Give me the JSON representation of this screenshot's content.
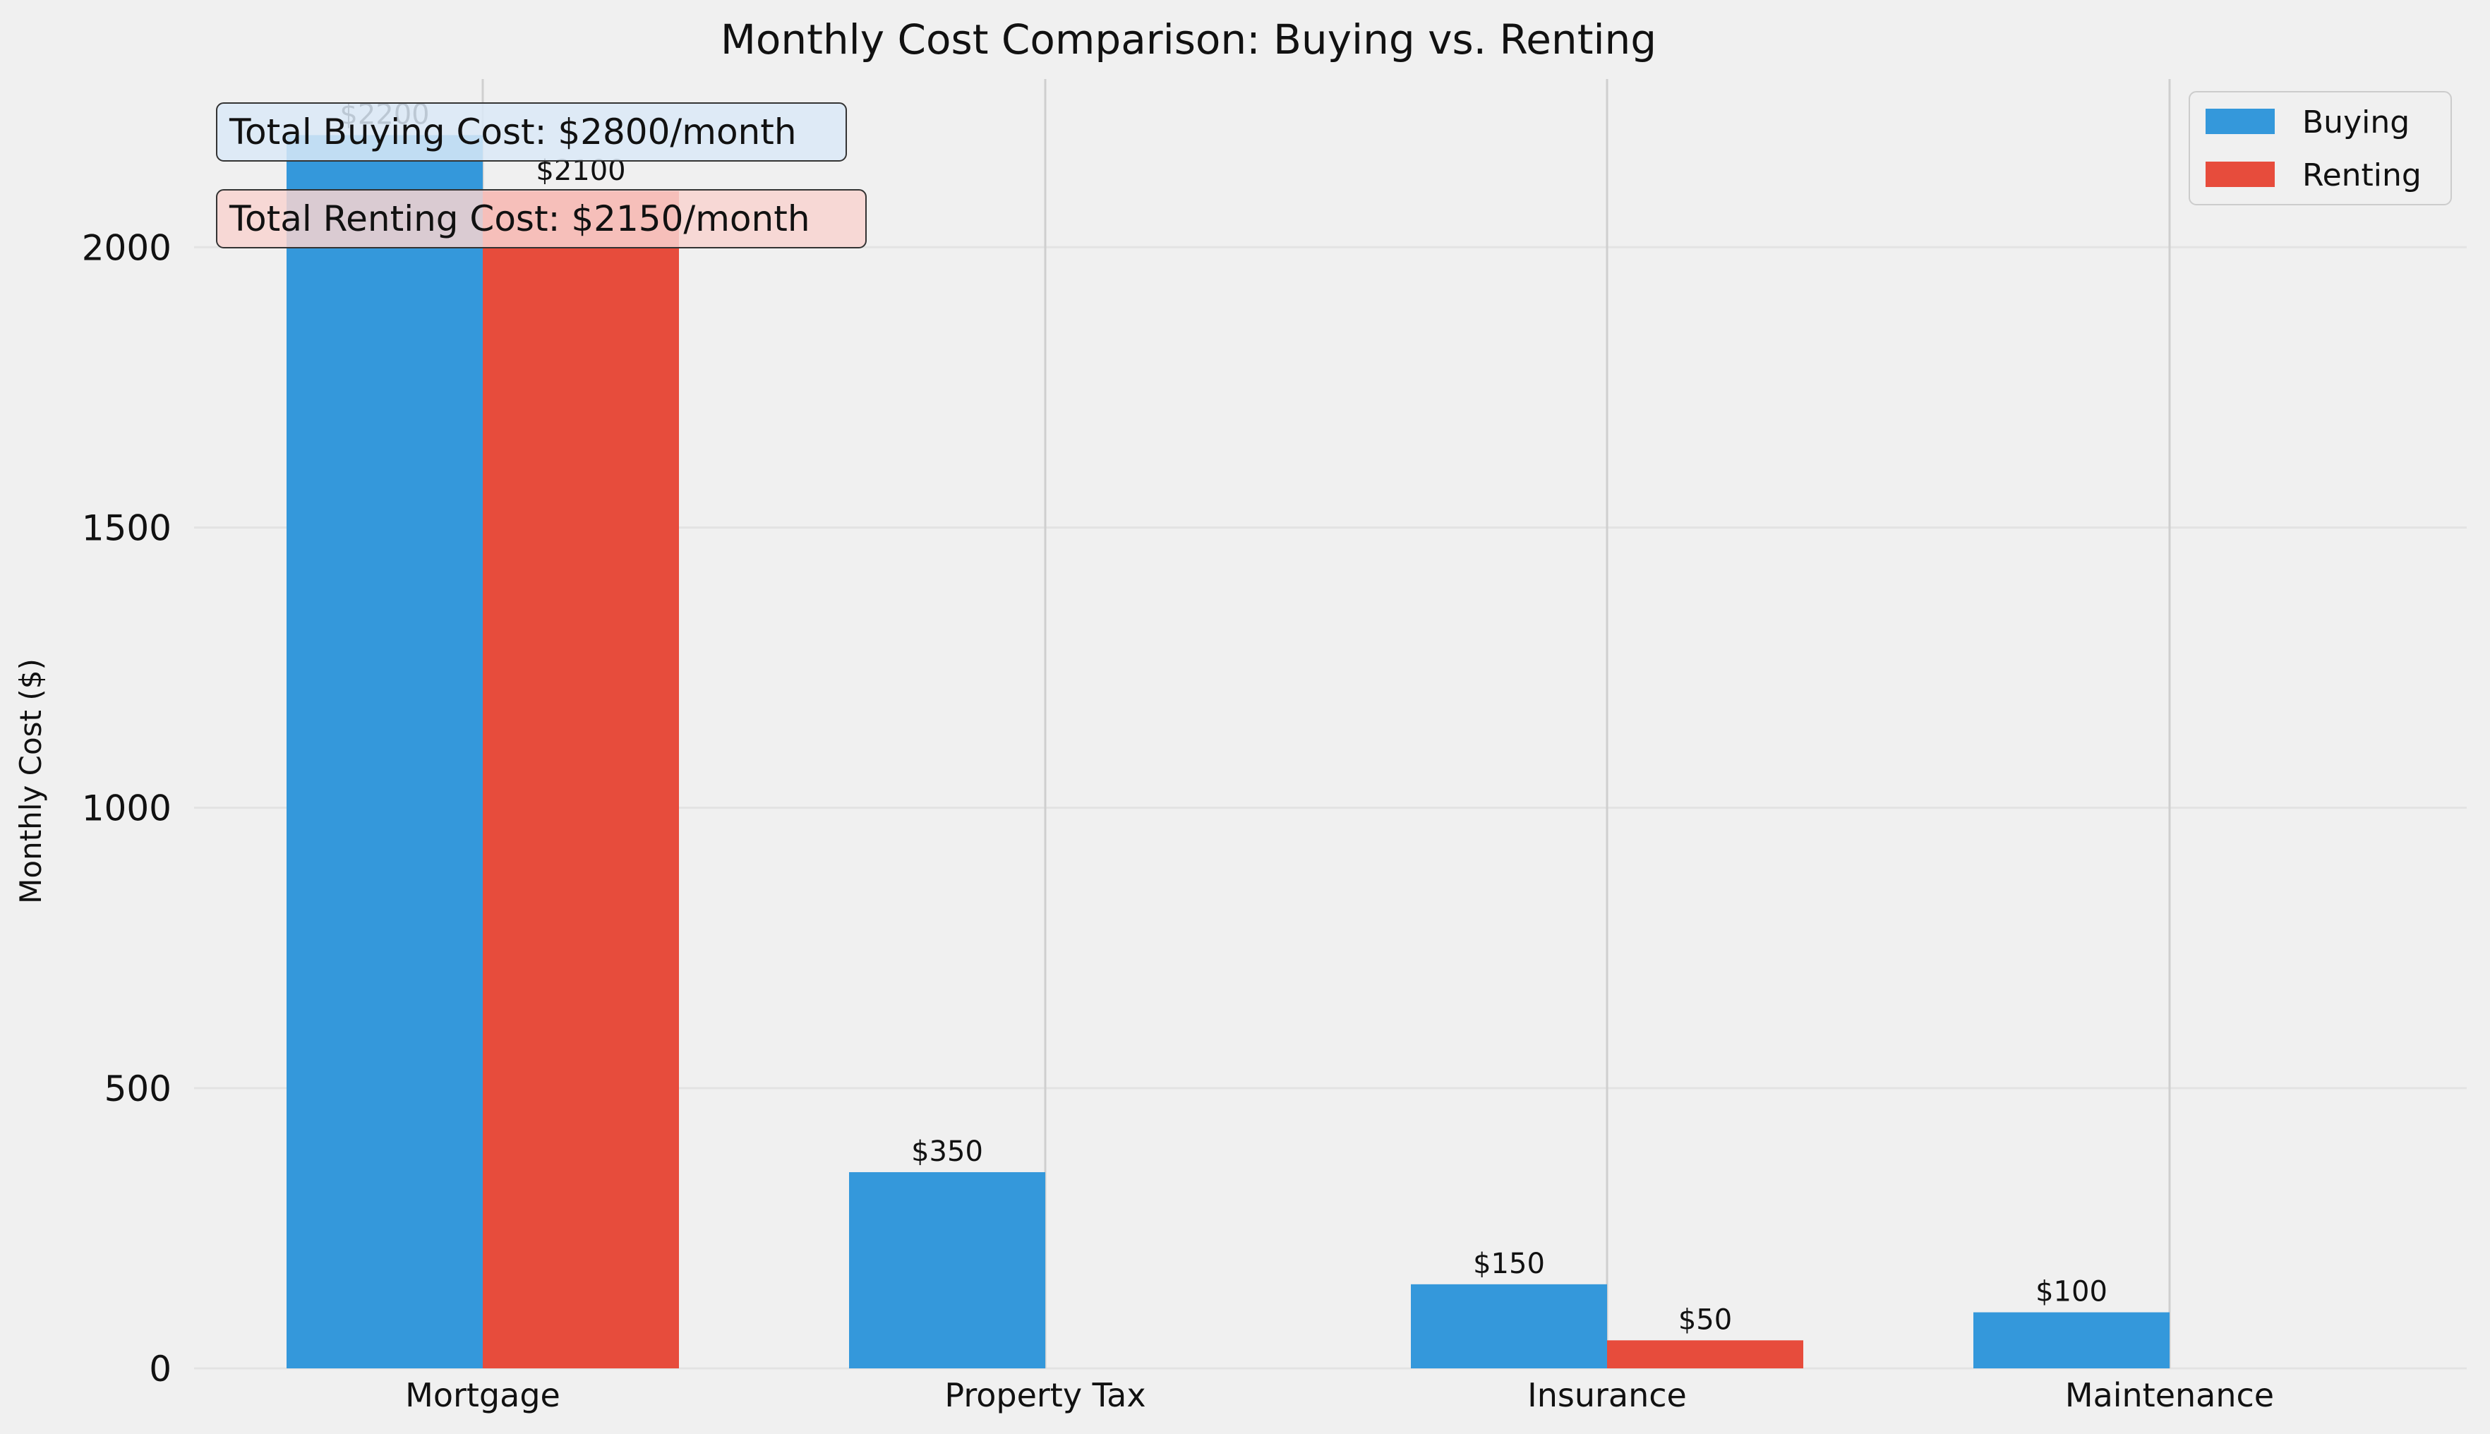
{
  "chart_data": {
    "type": "bar",
    "title": "Monthly Cost Comparison: Buying vs. Renting",
    "xlabel": "",
    "ylabel": "Monthly Cost ($)",
    "categories": [
      "Mortgage",
      "Property Tax",
      "Insurance",
      "Maintenance"
    ],
    "series": [
      {
        "name": "Buying",
        "values": [
          2200,
          350,
          150,
          100
        ],
        "color": "#3498db"
      },
      {
        "name": "Renting",
        "values": [
          2100,
          0,
          50,
          0
        ],
        "color": "#e74c3c"
      }
    ],
    "value_labels": {
      "Buying": [
        "$2200",
        "$350",
        "$150",
        "$100"
      ],
      "Renting": [
        "$2100",
        "",
        "$50",
        ""
      ]
    },
    "ylim": [
      0,
      2300
    ],
    "yticks": [
      0,
      500,
      1000,
      1500,
      2000
    ],
    "ytick_labels": [
      "0",
      "500",
      "1000",
      "1500",
      "2000"
    ],
    "grid": true,
    "legend_position": "top-right",
    "annotations": [
      {
        "text": "Total Buying Cost: $2800/month",
        "color": "#dbe9f7"
      },
      {
        "text": "Total Renting Cost: $2150/month",
        "color": "#f8d3d0"
      }
    ]
  }
}
